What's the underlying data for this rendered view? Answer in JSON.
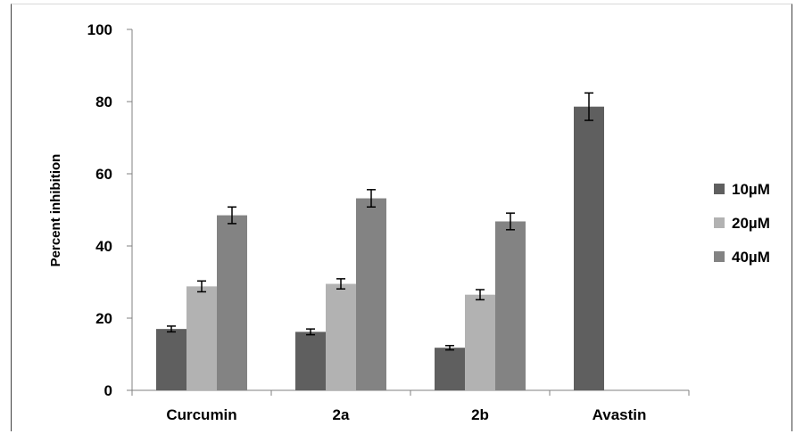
{
  "chart_data": {
    "type": "bar",
    "title": "",
    "xlabel": "",
    "ylabel": "Percent inhibition",
    "ylim": [
      0,
      100
    ],
    "yticks": [
      0,
      20,
      40,
      60,
      80,
      100
    ],
    "categories": [
      "Curcumin",
      "2a",
      "2b",
      "Avastin"
    ],
    "series": [
      {
        "name": "10µM",
        "color": "#5f5f5f",
        "values": [
          17,
          16.2,
          11.8,
          78.6
        ],
        "errors": [
          0.8,
          0.8,
          0.6,
          3.8
        ]
      },
      {
        "name": "20µM",
        "color": "#b2b2b2",
        "values": [
          28.8,
          29.5,
          26.5,
          null
        ],
        "errors": [
          1.5,
          1.4,
          1.4,
          null
        ]
      },
      {
        "name": "40µM",
        "color": "#838383",
        "values": [
          48.5,
          53.2,
          46.8,
          null
        ],
        "errors": [
          2.3,
          2.4,
          2.3,
          null
        ]
      }
    ],
    "grid": false,
    "legend_position": "right"
  }
}
